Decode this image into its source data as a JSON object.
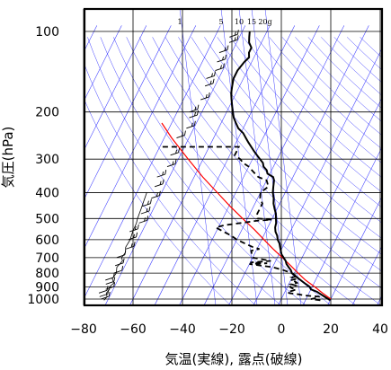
{
  "chart_data": {
    "type": "skew-t log-p sounding",
    "xlabel": "気温(実線), 露点(破線)",
    "ylabel": "気圧(hPa)",
    "x_range": [
      -80,
      40
    ],
    "p_range": [
      1030,
      100
    ],
    "x_ticks": [
      "−80",
      "−60",
      "−40",
      "−20",
      "0",
      "20",
      "40"
    ],
    "x_tick_values": [
      -80,
      -60,
      -40,
      -20,
      0,
      20,
      40
    ],
    "p_ticks": [
      "100",
      "200",
      "300",
      "400",
      "500",
      "600",
      "700",
      "800",
      "900",
      "1000"
    ],
    "p_tick_values": [
      100,
      200,
      300,
      400,
      500,
      600,
      700,
      800,
      900,
      1000
    ],
    "mixing_ratio_labels": [
      "1",
      "5",
      "10",
      "15",
      "20g"
    ],
    "grid": true,
    "colors": {
      "temperature": "#000000",
      "dewpoint": "#000000",
      "parcel": "#ff0000",
      "background_lines": "#3f3fff",
      "grid": "#000000"
    },
    "temperature": [
      [
        1010,
        20
      ],
      [
        1000,
        19
      ],
      [
        980,
        17
      ],
      [
        960,
        15
      ],
      [
        940,
        13
      ],
      [
        920,
        10
      ],
      [
        900,
        9
      ],
      [
        880,
        7
      ],
      [
        860,
        5
      ],
      [
        840,
        3
      ],
      [
        820,
        1
      ],
      [
        800,
        -1
      ],
      [
        780,
        -2
      ],
      [
        760,
        -3.5
      ],
      [
        740,
        -5
      ],
      [
        720,
        -6
      ],
      [
        700,
        -7.5
      ],
      [
        680,
        -9
      ],
      [
        660,
        -10
      ],
      [
        640,
        -11
      ],
      [
        620,
        -12
      ],
      [
        600,
        -13.5
      ],
      [
        580,
        -14.5
      ],
      [
        560,
        -16
      ],
      [
        540,
        -17
      ],
      [
        520,
        -17.5
      ],
      [
        500,
        -18.5
      ],
      [
        480,
        -19.5
      ],
      [
        460,
        -21
      ],
      [
        440,
        -22.5
      ],
      [
        420,
        -23.5
      ],
      [
        400,
        -25
      ],
      [
        380,
        -26
      ],
      [
        360,
        -27
      ],
      [
        350,
        -28
      ],
      [
        340,
        -31
      ],
      [
        330,
        -32
      ],
      [
        320,
        -34
      ],
      [
        310,
        -35
      ],
      [
        300,
        -37
      ],
      [
        290,
        -39
      ],
      [
        280,
        -41
      ],
      [
        270,
        -43
      ],
      [
        260,
        -45
      ],
      [
        250,
        -47
      ],
      [
        240,
        -49
      ],
      [
        230,
        -52
      ],
      [
        220,
        -54
      ],
      [
        210,
        -56
      ],
      [
        200,
        -57.5
      ],
      [
        190,
        -59
      ],
      [
        180,
        -60.5
      ],
      [
        170,
        -62
      ],
      [
        160,
        -63
      ],
      [
        150,
        -64
      ],
      [
        140,
        -64
      ],
      [
        130,
        -63
      ],
      [
        125,
        -62
      ],
      [
        120,
        -63
      ],
      [
        115,
        -63
      ],
      [
        110,
        -65
      ],
      [
        105,
        -66
      ],
      [
        100,
        -67
      ]
    ],
    "dewpoint": [
      [
        1010,
        16
      ],
      [
        1000,
        12
      ],
      [
        990,
        14
      ],
      [
        980,
        15
      ],
      [
        970,
        9
      ],
      [
        960,
        6
      ],
      [
        950,
        2
      ],
      [
        940,
        1
      ],
      [
        930,
        3
      ],
      [
        920,
        4
      ],
      [
        910,
        2
      ],
      [
        900,
        1
      ],
      [
        890,
        3
      ],
      [
        880,
        1
      ],
      [
        870,
        3
      ],
      [
        860,
        2
      ],
      [
        850,
        0
      ],
      [
        840,
        2
      ],
      [
        830,
        0
      ],
      [
        820,
        2
      ],
      [
        810,
        0
      ],
      [
        800,
        -1
      ],
      [
        780,
        -5
      ],
      [
        760,
        -10
      ],
      [
        740,
        -20
      ],
      [
        735,
        -13
      ],
      [
        730,
        -20
      ],
      [
        720,
        -12
      ],
      [
        700,
        -20
      ],
      [
        680,
        -21
      ],
      [
        660,
        -22
      ],
      [
        650,
        -19
      ],
      [
        640,
        -22
      ],
      [
        620,
        -26
      ],
      [
        600,
        -30
      ],
      [
        580,
        -33
      ],
      [
        560,
        -37
      ],
      [
        540,
        -41
      ],
      [
        530,
        -38
      ],
      [
        520,
        -32
      ],
      [
        510,
        -26
      ],
      [
        505,
        -20
      ],
      [
        500,
        -26
      ],
      [
        480,
        -27
      ],
      [
        460,
        -27
      ],
      [
        440,
        -27
      ],
      [
        420,
        -29
      ],
      [
        400,
        -30
      ],
      [
        380,
        -28
      ],
      [
        360,
        -30
      ],
      [
        350,
        -34
      ],
      [
        340,
        -36
      ],
      [
        330,
        -38
      ],
      [
        320,
        -40
      ],
      [
        310,
        -43
      ],
      [
        300,
        -45
      ],
      [
        290,
        -48
      ],
      [
        280,
        -48
      ],
      [
        270,
        -48
      ],
      [
        270,
        -80
      ]
    ],
    "parcel": [
      [
        1000,
        20
      ],
      [
        950,
        15.5
      ],
      [
        900,
        11
      ],
      [
        850,
        6
      ],
      [
        800,
        1.5
      ],
      [
        750,
        -3
      ],
      [
        700,
        -8
      ],
      [
        650,
        -13.5
      ],
      [
        600,
        -19
      ],
      [
        550,
        -25
      ],
      [
        500,
        -32
      ],
      [
        450,
        -39.5
      ],
      [
        400,
        -47.5
      ],
      [
        350,
        -56.5
      ],
      [
        300,
        -66
      ],
      [
        250,
        -77
      ],
      [
        220,
        -84
      ]
    ],
    "wind_profile": [
      [
        1010,
        -71.5
      ],
      [
        980,
        -71
      ],
      [
        950,
        -72
      ],
      [
        920,
        -71.5
      ],
      [
        900,
        -72
      ],
      [
        870,
        -71
      ],
      [
        840,
        -72.5
      ],
      [
        800,
        -72
      ],
      [
        760,
        -73
      ],
      [
        720,
        -72
      ],
      [
        700,
        -73
      ],
      [
        670,
        -72.5
      ],
      [
        640,
        -73.5
      ],
      [
        600,
        -73.2
      ],
      [
        560,
        -73.8
      ],
      [
        520,
        -74
      ],
      [
        500,
        -74.5
      ],
      [
        460,
        -75
      ],
      [
        430,
        -75.5
      ],
      [
        400,
        -76
      ]
    ]
  }
}
